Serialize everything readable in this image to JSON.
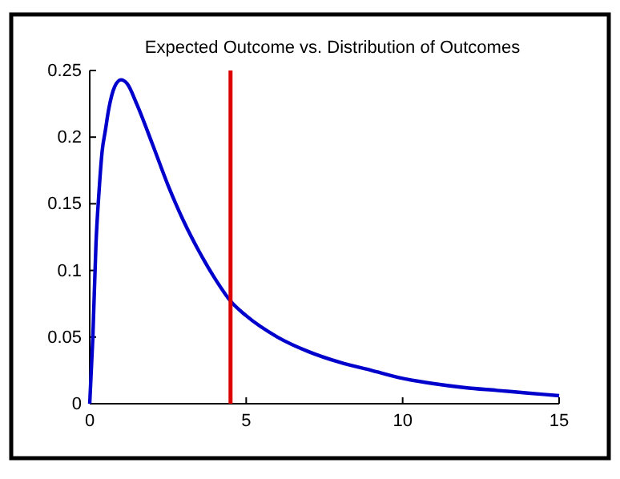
{
  "chart_data": {
    "type": "line",
    "title": "Expected Outcome vs. Distribution of Outcomes",
    "x": [
      0,
      0.1,
      0.2,
      0.3,
      0.4,
      0.5,
      0.6,
      0.8,
      1.0,
      1.2,
      1.5,
      2,
      2.5,
      3,
      3.5,
      4,
      4.5,
      5,
      6,
      7,
      8,
      9,
      10,
      11,
      12,
      13,
      14,
      15
    ],
    "series": [
      {
        "color": "#0000cc",
        "values": [
          0,
          0.05,
          0.12,
          0.16,
          0.19,
          0.205,
          0.22,
          0.238,
          0.243,
          0.24,
          0.225,
          0.195,
          0.164,
          0.137,
          0.114,
          0.094,
          0.077,
          0.066,
          0.05,
          0.039,
          0.031,
          0.025,
          0.019,
          0.015,
          0.012,
          0.01,
          0.008,
          0.006
        ]
      }
    ],
    "xlim": [
      0,
      15
    ],
    "xticks": [
      0,
      5,
      10,
      15
    ],
    "ylim": [
      0,
      0.25
    ],
    "yticks": [
      0,
      0.05,
      0.1,
      0.15,
      0.2,
      0.25
    ],
    "ref_lines": [
      {
        "axis": "x",
        "value": 4.5,
        "color": "#dd0000"
      }
    ],
    "marker": "none",
    "line_style": "solid"
  }
}
